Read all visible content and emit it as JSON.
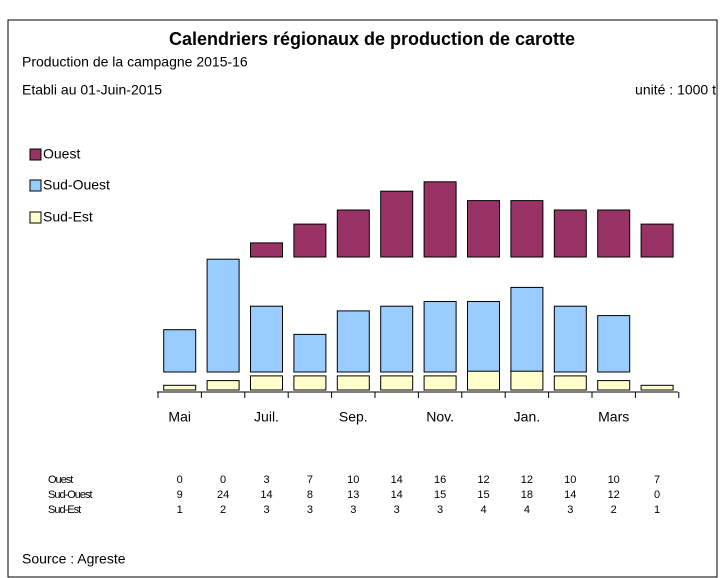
{
  "chart_data": {
    "type": "bar",
    "title": "Calendriers régionaux de production de carotte",
    "subtitle": "Production de la campagne 2015-16",
    "date_note": "Etabli au 01-Juin-2015",
    "unit": "unité : 1000 t",
    "source": "Source : Agreste",
    "categories": [
      "Mai",
      null,
      "Juil.",
      null,
      "Sep.",
      null,
      "Nov.",
      null,
      "Jan.",
      null,
      "Mars",
      null
    ],
    "series": [
      {
        "name": "Ouest",
        "color": "#993366",
        "values": [
          0,
          0,
          3,
          7,
          10,
          14,
          16,
          12,
          12,
          10,
          10,
          7
        ]
      },
      {
        "name": "Sud-Ouest",
        "color": "#99ccff",
        "values": [
          9,
          24,
          14,
          8,
          13,
          14,
          15,
          15,
          18,
          14,
          12,
          0
        ]
      },
      {
        "name": "Sud-Est",
        "color": "#ffffcc",
        "values": [
          1,
          2,
          3,
          3,
          3,
          3,
          3,
          4,
          4,
          3,
          2,
          1
        ]
      }
    ]
  }
}
